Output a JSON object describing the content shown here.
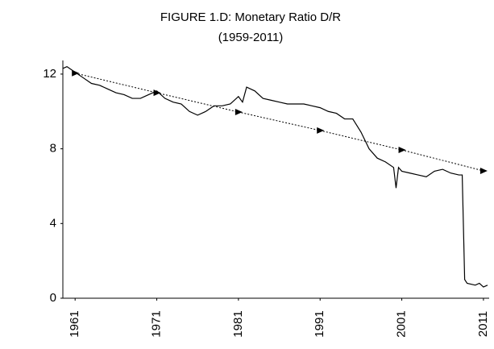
{
  "chart_data": {
    "type": "line",
    "title": "FIGURE 1.D: Monetary Ratio D/R",
    "subtitle": "(1959-2011)",
    "xlim": [
      1959.5,
      2011.7
    ],
    "ylim": [
      0,
      12.7
    ],
    "xticks": [
      1961,
      1971,
      1981,
      1991,
      2001,
      2011
    ],
    "yticks": [
      0,
      4,
      8,
      12
    ],
    "grid": false,
    "series": [
      {
        "color": "#000000",
        "style": "solid",
        "x": [
          1959.5,
          1960,
          1961,
          1962,
          1963,
          1964,
          1965,
          1966,
          1967,
          1968,
          1969,
          1970,
          1971,
          1972,
          1973,
          1974,
          1975,
          1976,
          1977,
          1978,
          1979,
          1980,
          1981,
          1981.5,
          1982,
          1983,
          1984,
          1985,
          1986,
          1987,
          1988,
          1989,
          1990,
          1991,
          1992,
          1993,
          1994,
          1995,
          1996,
          1997,
          1998,
          1999,
          2000,
          2000.3,
          2000.6,
          2001,
          2002,
          2003,
          2004,
          2005,
          2006,
          2007,
          2008,
          2008.4,
          2008.7,
          2009,
          2010,
          2010.5,
          2011,
          2011.5
        ],
        "values": [
          12.3,
          12.4,
          12.1,
          11.8,
          11.5,
          11.4,
          11.2,
          11.0,
          10.9,
          10.7,
          10.7,
          10.9,
          11.1,
          10.7,
          10.5,
          10.4,
          10.0,
          9.8,
          10.0,
          10.3,
          10.3,
          10.4,
          10.8,
          10.5,
          11.3,
          11.1,
          10.7,
          10.6,
          10.5,
          10.4,
          10.4,
          10.4,
          10.3,
          10.2,
          10.0,
          9.9,
          9.6,
          9.6,
          8.9,
          8.0,
          7.5,
          7.3,
          7.0,
          5.9,
          7.0,
          6.8,
          6.7,
          6.6,
          6.5,
          6.8,
          6.9,
          6.7,
          6.6,
          6.6,
          1.0,
          0.8,
          0.7,
          0.8,
          0.6,
          0.7
        ]
      },
      {
        "color": "#000000",
        "style": "dashed",
        "marker": "triangle",
        "x": [
          1961,
          1971,
          1981,
          1991,
          2001,
          2011
        ],
        "values": [
          12.05,
          11.0,
          9.97,
          8.98,
          7.94,
          6.82
        ]
      }
    ]
  }
}
